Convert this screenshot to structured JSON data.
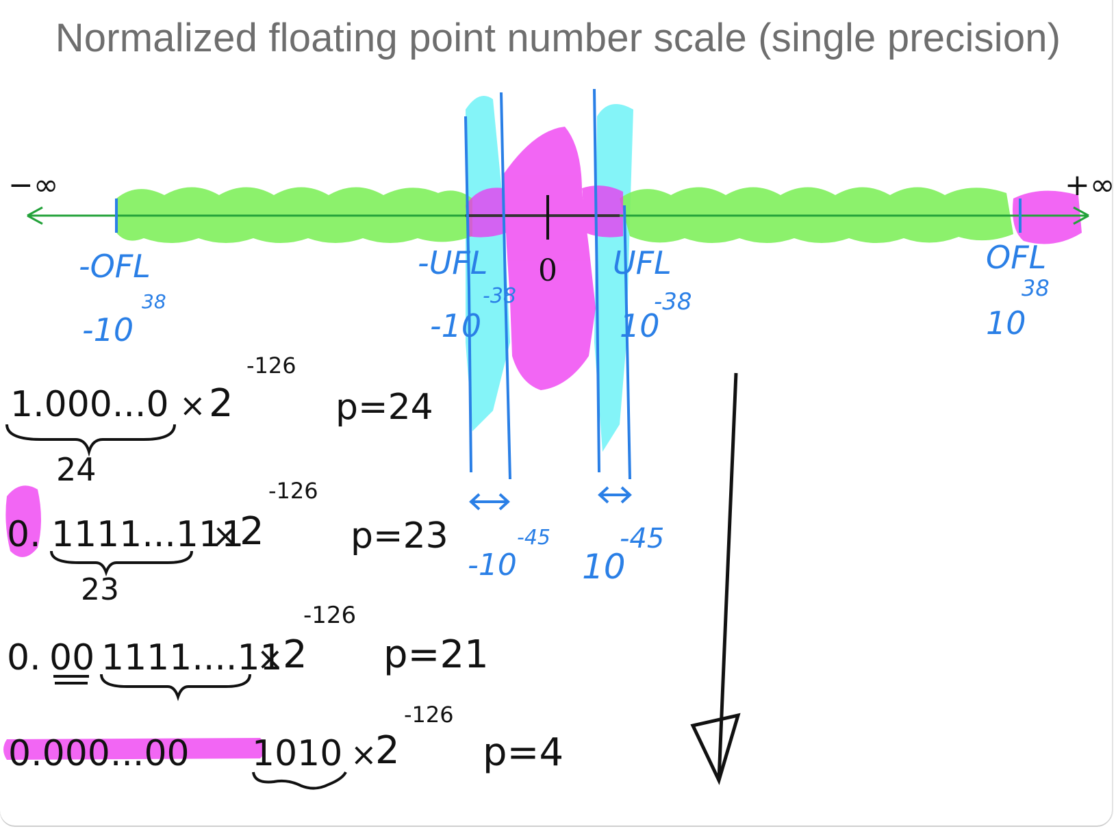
{
  "title": "Normalized floating point number scale (single precision)",
  "number_line": {
    "neg_inf": "−∞",
    "pos_inf": "+∞",
    "zero": "0",
    "neg_ofl": "-OFL",
    "neg_ofl_base": "-10",
    "neg_ofl_exp": "38",
    "neg_ufl": "-UFL",
    "neg_ufl_base": "-10",
    "neg_ufl_exp": "-38",
    "pos_ufl": "UFL",
    "pos_ufl_base": "10",
    "pos_ufl_exp": "-38",
    "pos_ofl": "OFL",
    "pos_ofl_base": "10",
    "pos_ofl_exp": "38",
    "neg_sub_base": "-10",
    "neg_sub_exp": "-45",
    "pos_sub_base": "10",
    "pos_sub_exp": "-45"
  },
  "rows": [
    {
      "mantissa": "1.000...0",
      "times": "×",
      "base": "2",
      "exp": "-126",
      "precision": "p=24",
      "brace": "24"
    },
    {
      "lead": "0.",
      "mantissa": "1111...111",
      "times": "×",
      "base": "2",
      "exp": "-126",
      "precision": "p=23",
      "brace": "23"
    },
    {
      "lead": "0.",
      "zeros": "00",
      "mantissa": "1111....11",
      "times": "×",
      "base": "2",
      "exp": "-126",
      "precision": "p=21"
    },
    {
      "lead": "0.000...00",
      "mantissa": "1010",
      "times": "×",
      "base": "2",
      "exp": "-126",
      "precision": "p=4"
    }
  ],
  "colors": {
    "normal_range": "#7ff05c",
    "subnormal_band": "#6ff2f7",
    "zero_gap": "#ee33f0",
    "annotation": "#2a7fe6",
    "ink": "#111111",
    "axis": "#23a23a"
  }
}
